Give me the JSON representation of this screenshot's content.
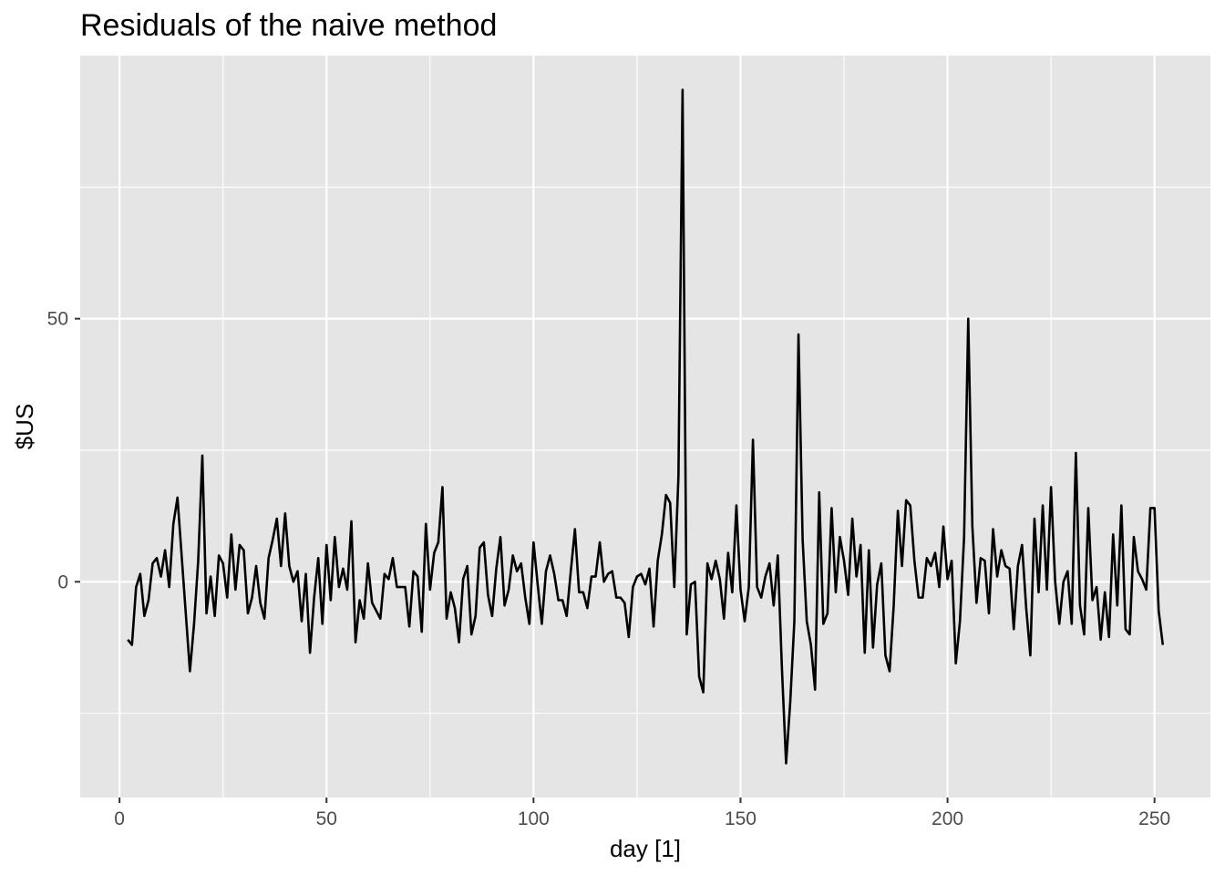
{
  "chart_data": {
    "type": "line",
    "title": "Residuals of the naive method",
    "xlabel": "day [1]",
    "ylabel": "$US",
    "xlim": [
      -9.5,
      263.5
    ],
    "ylim": [
      -41,
      100
    ],
    "x_ticks": [
      0,
      50,
      100,
      150,
      200,
      250
    ],
    "x_tick_labels": [
      "0",
      "50",
      "100",
      "150",
      "200",
      "250"
    ],
    "y_ticks": [
      0,
      50
    ],
    "y_tick_labels": [
      "0",
      "50"
    ],
    "x_minor_ticks": [
      25,
      75,
      125,
      175,
      225
    ],
    "y_minor_ticks": [
      -25,
      25,
      75
    ],
    "grid": true,
    "background": "#e5e5e5",
    "grid_color": "#ffffff",
    "line_color": "#000000",
    "series": [
      {
        "x_start": 2,
        "values": [
          -11,
          -12,
          -1,
          1.5,
          -6.5,
          -3.5,
          3.5,
          4.5,
          1,
          6,
          -1,
          11,
          16,
          5,
          -6,
          -17,
          -8,
          4,
          24,
          -6,
          1,
          -6.5,
          5,
          3.5,
          -3,
          9,
          -1.5,
          7,
          6,
          -6,
          -3,
          3,
          -4,
          -7,
          4.5,
          8,
          12,
          3,
          13,
          3,
          0,
          2,
          -7.5,
          1.5,
          -13.5,
          -3,
          4.5,
          -8,
          7,
          -3.5,
          8.5,
          -1,
          2.5,
          -1.5,
          11.5,
          -11.5,
          -3.5,
          -7,
          3.5,
          -4,
          -5.5,
          -7,
          1.5,
          0.5,
          4.5,
          -1,
          -1,
          -1,
          -8.5,
          2,
          1,
          -9.5,
          11,
          -1.5,
          5.5,
          7.5,
          18,
          -7,
          -2,
          -5,
          -11.5,
          0.5,
          3,
          -10,
          -6.5,
          6.5,
          7.5,
          -2.5,
          -6.5,
          2.5,
          8.5,
          -4.5,
          -1.5,
          5,
          2,
          3.5,
          -3,
          -8,
          7.5,
          -0.5,
          -8,
          2,
          5,
          1.5,
          -3.5,
          -3.5,
          -6.5,
          2,
          10,
          -2,
          -2,
          -5,
          1,
          1,
          7.5,
          0,
          1.5,
          2,
          -3,
          -3,
          -4,
          -10.5,
          -1,
          1,
          1.5,
          -0.5,
          2.5,
          -8.5,
          4,
          9,
          16.5,
          15,
          -1,
          20,
          93.5,
          -10,
          -0.5,
          0,
          -18,
          -21,
          3.5,
          0.5,
          4,
          0.5,
          -7,
          5.5,
          -2,
          14.5,
          -1.5,
          -7.5,
          -1,
          27,
          -1,
          -3,
          1,
          3.5,
          -4.5,
          5,
          -16.5,
          -34.5,
          -23,
          -7.5,
          47,
          8,
          -7.5,
          -12,
          -20.5,
          17,
          -8,
          -6,
          14,
          -2,
          8.5,
          4,
          -2.5,
          12,
          1,
          7,
          -13.5,
          6,
          -12.5,
          -0.5,
          3.5,
          -14,
          -17,
          -4.5,
          13.5,
          3,
          15.5,
          14.5,
          4,
          -3,
          -3,
          4.5,
          3,
          5.5,
          -1,
          10.5,
          0.5,
          4,
          -15.5,
          -7.5,
          8.5,
          50,
          10.5,
          -4,
          4.5,
          4,
          -6,
          10,
          1,
          6,
          3,
          2.5,
          -9,
          3,
          7,
          -5,
          -14,
          12,
          -2,
          14.5,
          -1.5,
          18,
          0,
          -8,
          0,
          2,
          -8,
          24.5,
          -4.5,
          -10,
          14,
          -3.5,
          -1,
          -11,
          -2,
          -10.5,
          9,
          -4.5,
          14.5,
          -9,
          -10,
          8.5,
          2,
          0.5,
          -1.5,
          14,
          14,
          -5.5,
          -12
        ]
      }
    ]
  }
}
